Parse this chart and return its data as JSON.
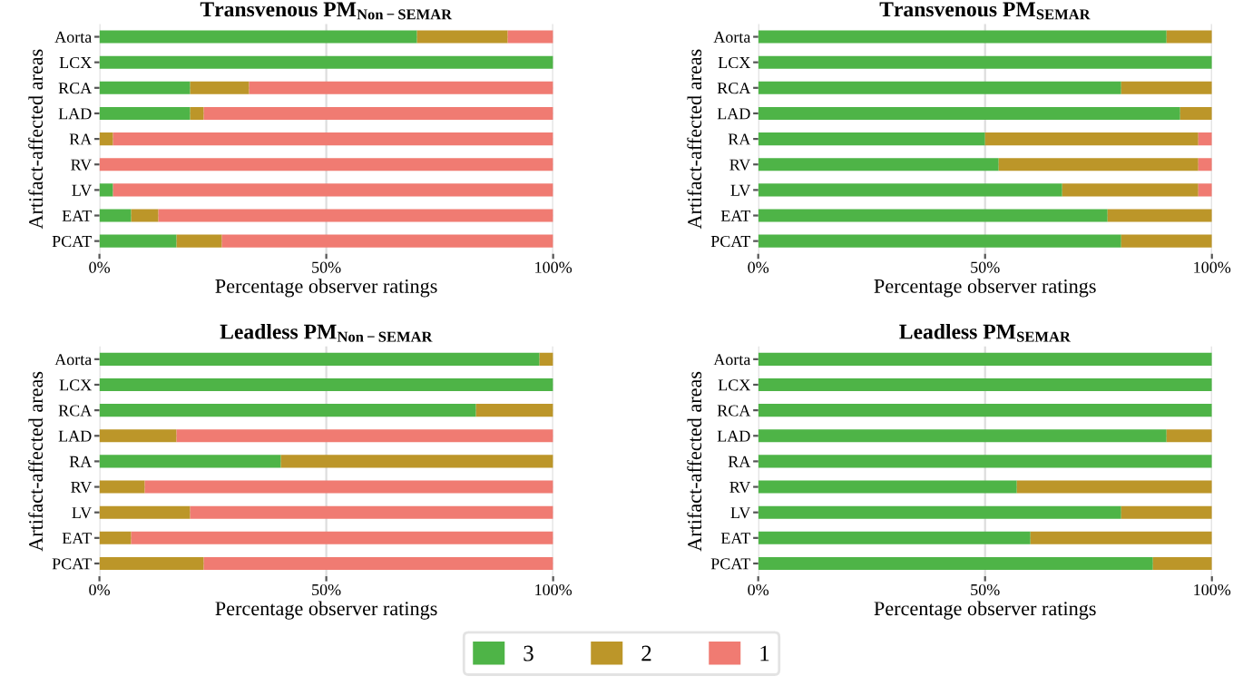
{
  "chart_data": [
    {
      "type": "bar",
      "orientation": "horizontal",
      "stacked": true,
      "title": "Transvenous PM$_{Non−SEMAR}$",
      "xlabel": "Percentage observer ratings",
      "ylabel": "Artifact-affected areas",
      "categories": [
        "Aorta",
        "LCX",
        "RCA",
        "LAD",
        "RA",
        "RV",
        "LV",
        "EAT",
        "PCAT"
      ],
      "series": [
        {
          "name": "3",
          "color": "#4eb447",
          "values": [
            70,
            100,
            20,
            20,
            0,
            0,
            3,
            7,
            17
          ]
        },
        {
          "name": "2",
          "color": "#bc9629",
          "values": [
            20,
            0,
            13,
            3,
            3,
            0,
            0,
            6,
            10
          ]
        },
        {
          "name": "1",
          "color": "#f07b72",
          "values": [
            10,
            0,
            67,
            77,
            97,
            100,
            97,
            87,
            73
          ]
        }
      ],
      "xlim": [
        0,
        100
      ],
      "xticks": [
        {
          "value": 0,
          "label": "0%"
        },
        {
          "value": 50,
          "label": "50%"
        },
        {
          "value": 100,
          "label": "100%"
        }
      ],
      "grid": true,
      "legend": "bottom"
    },
    {
      "type": "bar",
      "orientation": "horizontal",
      "stacked": true,
      "title": "Transvenous PM$_{SEMAR}$",
      "xlabel": "Percentage observer ratings",
      "ylabel": "Artifact-affected areas",
      "categories": [
        "Aorta",
        "LCX",
        "RCA",
        "LAD",
        "RA",
        "RV",
        "LV",
        "EAT",
        "PCAT"
      ],
      "series": [
        {
          "name": "3",
          "color": "#4eb447",
          "values": [
            90,
            100,
            80,
            93,
            50,
            53,
            67,
            77,
            80
          ]
        },
        {
          "name": "2",
          "color": "#bc9629",
          "values": [
            10,
            0,
            20,
            7,
            47,
            44,
            30,
            23,
            20
          ]
        },
        {
          "name": "1",
          "color": "#f07b72",
          "values": [
            0,
            0,
            0,
            0,
            3,
            3,
            3,
            0,
            0
          ]
        }
      ],
      "xlim": [
        0,
        100
      ],
      "xticks": [
        {
          "value": 0,
          "label": "0%"
        },
        {
          "value": 50,
          "label": "50%"
        },
        {
          "value": 100,
          "label": "100%"
        }
      ],
      "grid": true,
      "legend": "bottom"
    },
    {
      "type": "bar",
      "orientation": "horizontal",
      "stacked": true,
      "title": "Leadless PM$_{Non−SEMAR}$",
      "xlabel": "Percentage observer ratings",
      "ylabel": "Artifact-affected areas",
      "categories": [
        "Aorta",
        "LCX",
        "RCA",
        "LAD",
        "RA",
        "RV",
        "LV",
        "EAT",
        "PCAT"
      ],
      "series": [
        {
          "name": "3",
          "color": "#4eb447",
          "values": [
            97,
            100,
            83,
            0,
            40,
            0,
            0,
            0,
            0
          ]
        },
        {
          "name": "2",
          "color": "#bc9629",
          "values": [
            3,
            0,
            17,
            17,
            60,
            10,
            20,
            7,
            23
          ]
        },
        {
          "name": "1",
          "color": "#f07b72",
          "values": [
            0,
            0,
            0,
            83,
            0,
            90,
            80,
            93,
            77
          ]
        }
      ],
      "xlim": [
        0,
        100
      ],
      "xticks": [
        {
          "value": 0,
          "label": "0%"
        },
        {
          "value": 50,
          "label": "50%"
        },
        {
          "value": 100,
          "label": "100%"
        }
      ],
      "grid": true,
      "legend": "bottom"
    },
    {
      "type": "bar",
      "orientation": "horizontal",
      "stacked": true,
      "title": "Leadless PM$_{SEMAR}$",
      "xlabel": "Percentage observer ratings",
      "ylabel": "Artifact-affected areas",
      "categories": [
        "Aorta",
        "LCX",
        "RCA",
        "LAD",
        "RA",
        "RV",
        "LV",
        "EAT",
        "PCAT"
      ],
      "series": [
        {
          "name": "3",
          "color": "#4eb447",
          "values": [
            100,
            100,
            100,
            90,
            100,
            57,
            80,
            60,
            87
          ]
        },
        {
          "name": "2",
          "color": "#bc9629",
          "values": [
            0,
            0,
            0,
            10,
            0,
            43,
            20,
            40,
            13
          ]
        },
        {
          "name": "1",
          "color": "#f07b72",
          "values": [
            0,
            0,
            0,
            0,
            0,
            0,
            0,
            0,
            0
          ]
        }
      ],
      "xlim": [
        0,
        100
      ],
      "xticks": [
        {
          "value": 0,
          "label": "0%"
        },
        {
          "value": 50,
          "label": "50%"
        },
        {
          "value": 100,
          "label": "100%"
        }
      ],
      "grid": true,
      "legend": "bottom"
    }
  ]
}
